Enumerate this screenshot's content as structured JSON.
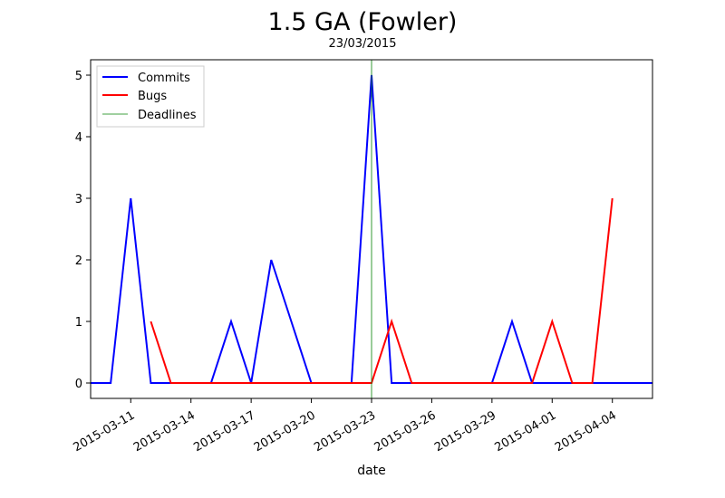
{
  "chart_data": {
    "type": "line",
    "title": "1.5 GA (Fowler)",
    "subtitle": "23/03/2015",
    "xlabel": "date",
    "ylabel": "",
    "xlim": [
      "2015-03-09",
      "2015-04-06"
    ],
    "ylim": [
      -0.25,
      5.25
    ],
    "yticks": [
      0,
      1,
      2,
      3,
      4,
      5
    ],
    "xticks": [
      "2015-03-11",
      "2015-03-14",
      "2015-03-17",
      "2015-03-20",
      "2015-03-23",
      "2015-03-26",
      "2015-03-29",
      "2015-04-01",
      "2015-04-04"
    ],
    "grid": false,
    "legend_position": "top-left",
    "series": [
      {
        "name": "Commits",
        "color": "#0000ff",
        "x": [
          "2015-03-09",
          "2015-03-10",
          "2015-03-11",
          "2015-03-12",
          "2015-03-13",
          "2015-03-14",
          "2015-03-15",
          "2015-03-16",
          "2015-03-17",
          "2015-03-18",
          "2015-03-19",
          "2015-03-20",
          "2015-03-21",
          "2015-03-22",
          "2015-03-23",
          "2015-03-24",
          "2015-03-25",
          "2015-03-26",
          "2015-03-27",
          "2015-03-28",
          "2015-03-29",
          "2015-03-30",
          "2015-03-31",
          "2015-04-01",
          "2015-04-02",
          "2015-04-03",
          "2015-04-04",
          "2015-04-05",
          "2015-04-06"
        ],
        "values": [
          0,
          0,
          3,
          0,
          0,
          0,
          0,
          1,
          0,
          2,
          1,
          0,
          0,
          0,
          5,
          0,
          0,
          0,
          0,
          0,
          0,
          1,
          0,
          0,
          0,
          0,
          0,
          0,
          0
        ]
      },
      {
        "name": "Bugs",
        "color": "#ff0000",
        "x": [
          "2015-03-12",
          "2015-03-13",
          "2015-03-14",
          "2015-03-15",
          "2015-03-16",
          "2015-03-17",
          "2015-03-18",
          "2015-03-19",
          "2015-03-20",
          "2015-03-21",
          "2015-03-22",
          "2015-03-23",
          "2015-03-24",
          "2015-03-25",
          "2015-03-26",
          "2015-03-27",
          "2015-03-28",
          "2015-03-29",
          "2015-03-30",
          "2015-03-31",
          "2015-04-01",
          "2015-04-02",
          "2015-04-03",
          "2015-04-04"
        ],
        "values": [
          1,
          0,
          0,
          0,
          0,
          0,
          0,
          0,
          0,
          0,
          0,
          0,
          1,
          0,
          0,
          0,
          0,
          0,
          0,
          0,
          1,
          0,
          0,
          3
        ]
      },
      {
        "name": "Deadlines",
        "color": "#008000",
        "x": [
          "2015-03-23"
        ]
      }
    ]
  }
}
